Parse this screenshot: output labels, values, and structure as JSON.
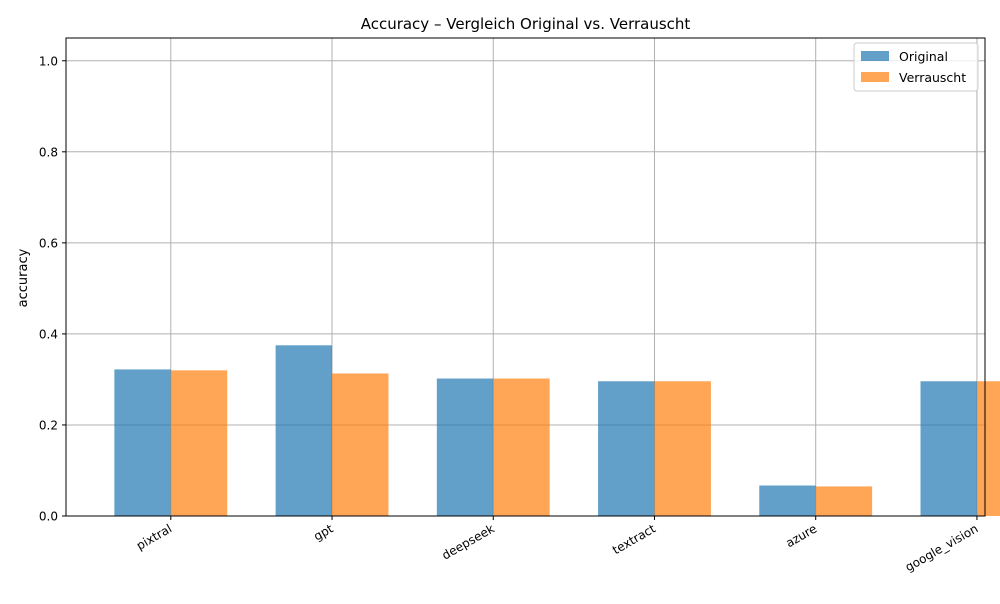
{
  "chart_data": {
    "type": "bar",
    "title": "Accuracy – Vergleich Original vs. Verrauscht",
    "xlabel": "",
    "ylabel": "accuracy",
    "categories": [
      "pixtral",
      "gpt",
      "deepseek",
      "textract",
      "azure",
      "google_vision"
    ],
    "series": [
      {
        "name": "Original",
        "color": "#1f77b4",
        "values": [
          0.322,
          0.375,
          0.302,
          0.296,
          0.067,
          0.296
        ]
      },
      {
        "name": "Verrauscht",
        "color": "#ff7f0e",
        "values": [
          0.32,
          0.313,
          0.302,
          0.296,
          0.065,
          0.296
        ]
      }
    ],
    "ylim": [
      0,
      1.05
    ],
    "yticks": [
      "0.0",
      "0.2",
      "0.4",
      "0.6",
      "0.8",
      "1.0"
    ],
    "grid": true,
    "legend_position": "top-right",
    "bar_opacity": 0.7,
    "xtick_rotation": "30 degrees"
  }
}
